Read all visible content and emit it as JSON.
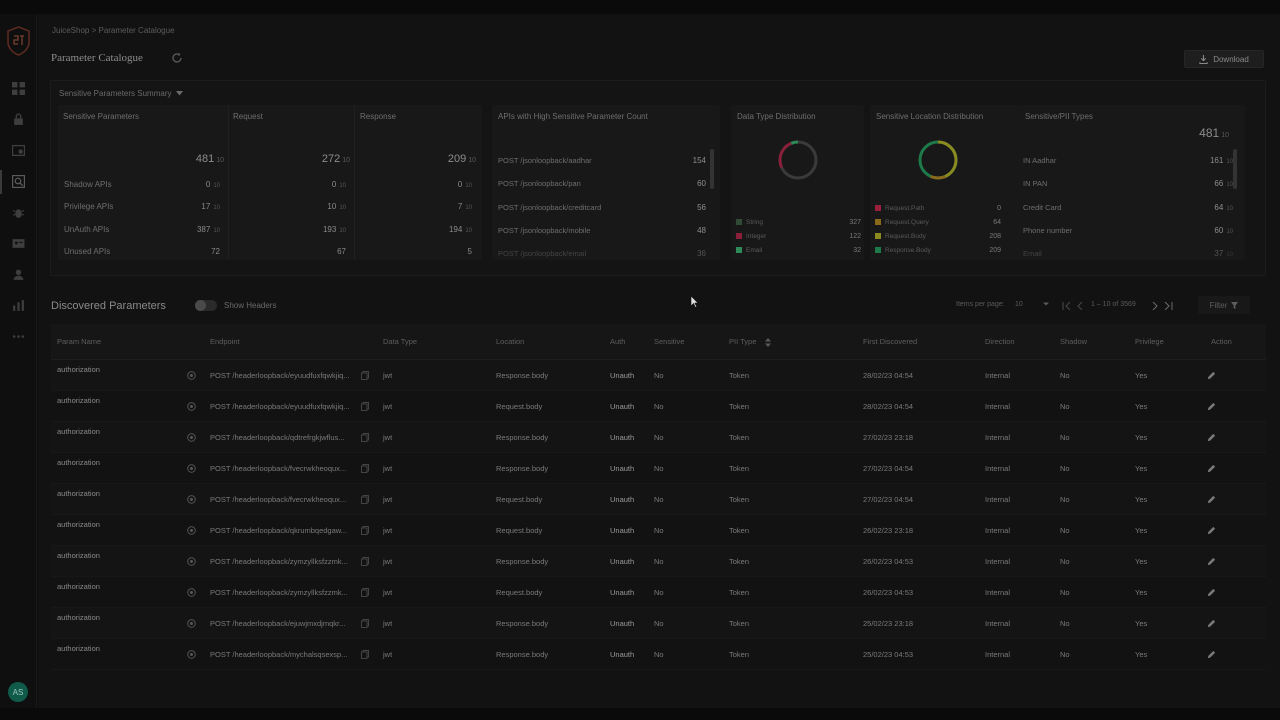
{
  "breadcrumb": "JuiceShop > Parameter Catalogue",
  "page_title": "Parameter Catalogue",
  "download_label": "Download",
  "summary": {
    "title": "Sensitive Parameters Summary",
    "sensitive": {
      "title": "Sensitive Parameters",
      "request_title": "Request",
      "response_title": "Response",
      "total": "481",
      "request_total": "272",
      "response_total": "209",
      "unit": "10",
      "rows": [
        {
          "label": "Shadow APIs",
          "total": "0",
          "request": "0",
          "response": "0",
          "unit": "10"
        },
        {
          "label": "Privilege APIs",
          "total": "17",
          "request": "10",
          "response": "7",
          "unit": "10"
        },
        {
          "label": "UnAuth APIs",
          "total": "387",
          "request": "193",
          "response": "194",
          "unit": "10"
        },
        {
          "label": "Unused APIs",
          "total": "72",
          "request": "67",
          "response": "5",
          "unit": ""
        }
      ]
    },
    "high_sensitive": {
      "title": "APIs with High Sensitive Parameter Count",
      "rows": [
        {
          "label": "POST /jsonloopback/aadhar",
          "value": "154"
        },
        {
          "label": "POST /jsonloopback/pan",
          "value": "60"
        },
        {
          "label": "POST /jsonloopback/creditcard",
          "value": "56"
        },
        {
          "label": "POST /jsonloopback/mobile",
          "value": "48"
        },
        {
          "label": "POST /jsonloopback/email",
          "value": "36"
        }
      ]
    },
    "data_type": {
      "title": "Data Type Distribution",
      "legend": [
        {
          "label": "String",
          "value": "327",
          "color": "#2f4a35"
        },
        {
          "label": "Integer",
          "value": "122",
          "color": "#8a1f3a"
        },
        {
          "label": "Email",
          "value": "32",
          "color": "#2f8a5a"
        }
      ]
    },
    "location": {
      "title": "Sensitive Location Distribution",
      "legend": [
        {
          "label": "Request.Path",
          "value": "0",
          "color": "#9a1f3a"
        },
        {
          "label": "Request.Query",
          "value": "64",
          "color": "#8a6a1a"
        },
        {
          "label": "Request.Body",
          "value": "208",
          "color": "#8a8a1f"
        },
        {
          "label": "Response.Body",
          "value": "209",
          "color": "#1f7a4a"
        }
      ]
    },
    "pii": {
      "title": "Sensitive/PII Types",
      "total": "481",
      "unit": "10",
      "rows": [
        {
          "label": "IN Aadhar",
          "value": "161",
          "unit": "10"
        },
        {
          "label": "IN PAN",
          "value": "66",
          "unit": "10"
        },
        {
          "label": "Credit Card",
          "value": "64",
          "unit": "10"
        },
        {
          "label": "Phone number",
          "value": "60",
          "unit": "10"
        },
        {
          "label": "Email",
          "value": "37",
          "unit": "10"
        }
      ]
    }
  },
  "discovered": {
    "title": "Discovered Parameters",
    "toggle_label": "Show Headers",
    "items_per_page_label": "Items per page:",
    "items_per_page": "10",
    "range": "1 – 10 of 3569",
    "filter_label": "Filter",
    "columns": [
      "Param Name",
      "Endpoint",
      "Data Type",
      "Location",
      "Auth",
      "Sensitive",
      "PII Type",
      "First Discovered",
      "Direction",
      "Shadow",
      "Privilege",
      "Action"
    ],
    "rows": [
      {
        "param": "authorization",
        "endpoint": "POST /headerloopback/eyuudfuxfqwkjiq...",
        "dtype": "jwt",
        "location": "Response.body",
        "auth": "Unauth",
        "sensitive": "No",
        "pii": "Token",
        "first": "28/02/23 04:54",
        "direction": "Internal",
        "shadow": "No",
        "privilege": "Yes"
      },
      {
        "param": "authorization",
        "endpoint": "POST /headerloopback/eyuudfuxfqwkjiq...",
        "dtype": "jwt",
        "location": "Request.body",
        "auth": "Unauth",
        "sensitive": "No",
        "pii": "Token",
        "first": "28/02/23 04:54",
        "direction": "Internal",
        "shadow": "No",
        "privilege": "Yes"
      },
      {
        "param": "authorization",
        "endpoint": "POST /headerloopback/qdtrefrgkjwflus...",
        "dtype": "jwt",
        "location": "Response.body",
        "auth": "Unauth",
        "sensitive": "No",
        "pii": "Token",
        "first": "27/02/23 23:18",
        "direction": "Internal",
        "shadow": "No",
        "privilege": "Yes"
      },
      {
        "param": "authorization",
        "endpoint": "POST /headerloopback/fvecrwkheoqux...",
        "dtype": "jwt",
        "location": "Response.body",
        "auth": "Unauth",
        "sensitive": "No",
        "pii": "Token",
        "first": "27/02/23 04:54",
        "direction": "Internal",
        "shadow": "No",
        "privilege": "Yes"
      },
      {
        "param": "authorization",
        "endpoint": "POST /headerloopback/fvecrwkheoqux...",
        "dtype": "jwt",
        "location": "Request.body",
        "auth": "Unauth",
        "sensitive": "No",
        "pii": "Token",
        "first": "27/02/23 04:54",
        "direction": "Internal",
        "shadow": "No",
        "privilege": "Yes"
      },
      {
        "param": "authorization",
        "endpoint": "POST /headerloopback/qkrumbqedgaw...",
        "dtype": "jwt",
        "location": "Request.body",
        "auth": "Unauth",
        "sensitive": "No",
        "pii": "Token",
        "first": "26/02/23 23:18",
        "direction": "Internal",
        "shadow": "No",
        "privilege": "Yes"
      },
      {
        "param": "authorization",
        "endpoint": "POST /headerloopback/zymzyllksfzzmk...",
        "dtype": "jwt",
        "location": "Response.body",
        "auth": "Unauth",
        "sensitive": "No",
        "pii": "Token",
        "first": "26/02/23 04:53",
        "direction": "Internal",
        "shadow": "No",
        "privilege": "Yes"
      },
      {
        "param": "authorization",
        "endpoint": "POST /headerloopback/zymzyllksfzzmk...",
        "dtype": "jwt",
        "location": "Request.body",
        "auth": "Unauth",
        "sensitive": "No",
        "pii": "Token",
        "first": "26/02/23 04:53",
        "direction": "Internal",
        "shadow": "No",
        "privilege": "Yes"
      },
      {
        "param": "authorization",
        "endpoint": "POST /headerloopback/ejuwjmxdjmqkr...",
        "dtype": "jwt",
        "location": "Response.body",
        "auth": "Unauth",
        "sensitive": "No",
        "pii": "Token",
        "first": "25/02/23 23:18",
        "direction": "Internal",
        "shadow": "No",
        "privilege": "Yes"
      },
      {
        "param": "authorization",
        "endpoint": "POST /headerloopback/mychalsqsexsp...",
        "dtype": "jwt",
        "location": "Response.body",
        "auth": "Unauth",
        "sensitive": "No",
        "pii": "Token",
        "first": "25/02/23 04:53",
        "direction": "Internal",
        "shadow": "No",
        "privilege": "Yes"
      }
    ]
  },
  "user_initials": "AS"
}
